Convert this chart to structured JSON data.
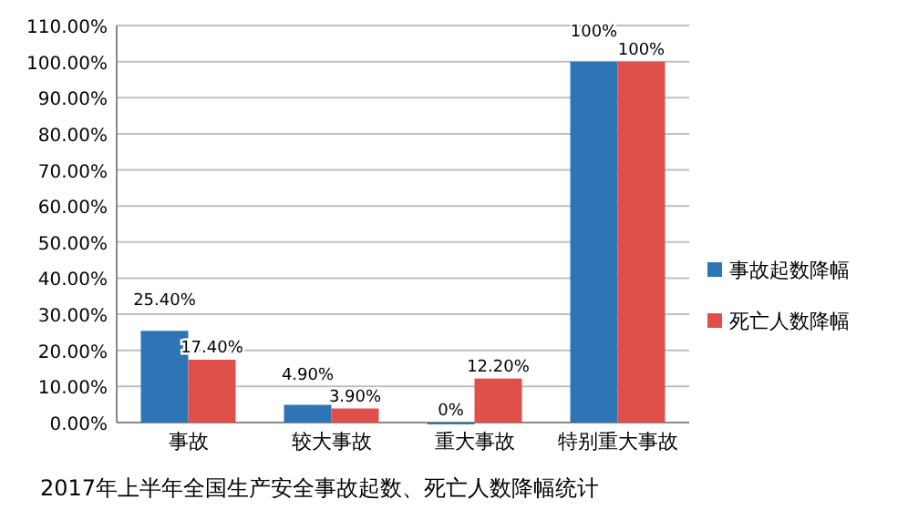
{
  "chart_data": {
    "type": "bar",
    "title": "2017年上半年全国生产安全事故起数、死亡人数降幅统计",
    "categories": [
      "事故",
      "较大事故",
      "重大事故",
      "特别重大事故"
    ],
    "series": [
      {
        "name": "事故起数降幅",
        "color": "#2e75b6",
        "values": [
          25.4,
          4.9,
          0,
          100
        ],
        "value_labels": [
          "25.40%",
          "4.90%",
          "0%",
          "100%"
        ]
      },
      {
        "name": "死亡人数降幅",
        "color": "#e0504a",
        "values": [
          17.4,
          3.9,
          12.2,
          100
        ],
        "value_labels": [
          "17.40%",
          "3.90%",
          "12.20%",
          "100%"
        ]
      }
    ],
    "ylim": [
      0,
      110
    ],
    "yticks": [
      {
        "value": 0,
        "label": "0.00%"
      },
      {
        "value": 10,
        "label": "10.00%"
      },
      {
        "value": 20,
        "label": "20.00%"
      },
      {
        "value": 30,
        "label": "30.00%"
      },
      {
        "value": 40,
        "label": "40.00%"
      },
      {
        "value": 50,
        "label": "50.00%"
      },
      {
        "value": 60,
        "label": "60.00%"
      },
      {
        "value": 70,
        "label": "70.00%"
      },
      {
        "value": 80,
        "label": "80.00%"
      },
      {
        "value": 90,
        "label": "90.00%"
      },
      {
        "value": 100,
        "label": "100.00%"
      },
      {
        "value": 110,
        "label": "110.00%"
      }
    ],
    "grid": "y",
    "legend": "right"
  }
}
